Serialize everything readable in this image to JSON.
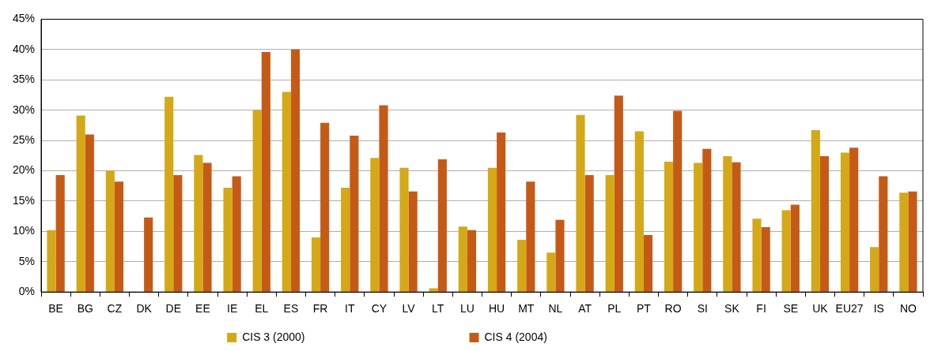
{
  "chart_data": {
    "type": "bar",
    "categories": [
      "BE",
      "BG",
      "CZ",
      "DK",
      "DE",
      "EE",
      "IE",
      "EL",
      "ES",
      "FR",
      "IT",
      "CY",
      "LV",
      "LT",
      "LU",
      "HU",
      "MT",
      "NL",
      "AT",
      "PL",
      "PT",
      "RO",
      "SI",
      "SK",
      "FI",
      "SE",
      "UK",
      "EU27",
      "IS",
      "NO"
    ],
    "series": [
      {
        "name": "CIS 3 (2000)",
        "color": "#d4a817",
        "values": [
          10.2,
          29.1,
          20.0,
          null,
          32.2,
          22.6,
          17.2,
          30.0,
          33.0,
          9.0,
          17.2,
          22.1,
          20.5,
          0.6,
          10.8,
          20.5,
          8.6,
          6.5,
          29.2,
          19.3,
          26.5,
          21.5,
          21.3,
          22.4,
          12.1,
          13.5,
          26.7,
          23.0,
          7.4,
          16.4
        ]
      },
      {
        "name": "CIS 4 (2004)",
        "color": "#c55a17",
        "values": [
          19.3,
          26.0,
          18.2,
          12.3,
          19.3,
          21.3,
          19.1,
          39.6,
          40.0,
          27.9,
          25.8,
          30.8,
          16.6,
          21.9,
          10.2,
          26.3,
          18.2,
          11.9,
          19.3,
          32.4,
          9.4,
          29.9,
          23.6,
          21.4,
          10.7,
          14.4,
          22.4,
          23.8,
          19.1,
          16.6
        ]
      }
    ],
    "ylim": [
      0,
      45
    ],
    "yticks": [
      {
        "value": 0,
        "label": "0%"
      },
      {
        "value": 5,
        "label": "5%"
      },
      {
        "value": 10,
        "label": "10%"
      },
      {
        "value": 15,
        "label": "15%"
      },
      {
        "value": 20,
        "label": "20%"
      },
      {
        "value": 25,
        "label": "25%"
      },
      {
        "value": 30,
        "label": "30%"
      },
      {
        "value": 35,
        "label": "35%"
      },
      {
        "value": 40,
        "label": "40%"
      },
      {
        "value": 45,
        "label": "45%"
      }
    ],
    "grid": "y",
    "legend": "bottom"
  }
}
